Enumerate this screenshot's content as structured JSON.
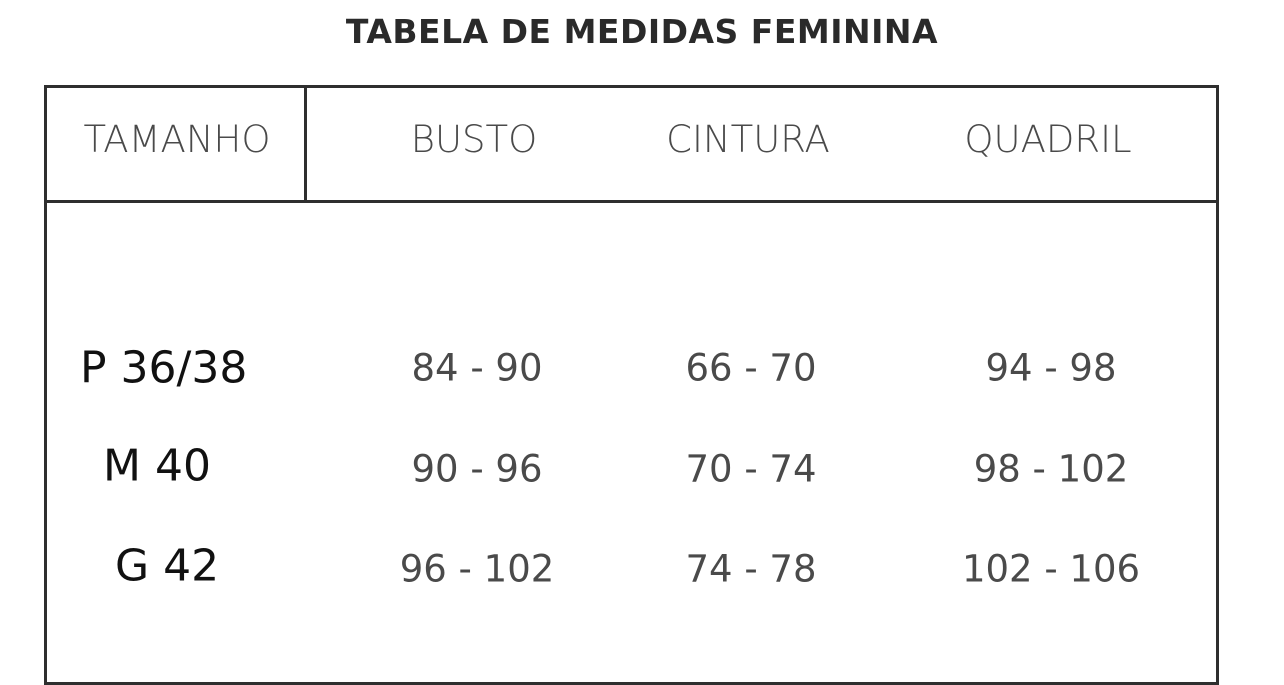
{
  "title": "TABELA DE MEDIDAS FEMININA",
  "headers": [
    "TAMANHO",
    "BUSTO",
    "CINTURA",
    "QUADRIL"
  ],
  "rows": [
    {
      "size": "P 36/38",
      "busto": "84 - 90",
      "cintura": "66 - 70",
      "quadril": "94 - 98"
    },
    {
      "size": "M 40",
      "busto": "90 - 96",
      "cintura": "70 - 74",
      "quadril": "98 - 102"
    },
    {
      "size": "G 42",
      "busto": "96 - 102",
      "cintura": "74 - 78",
      "quadril": "102 - 106"
    }
  ]
}
